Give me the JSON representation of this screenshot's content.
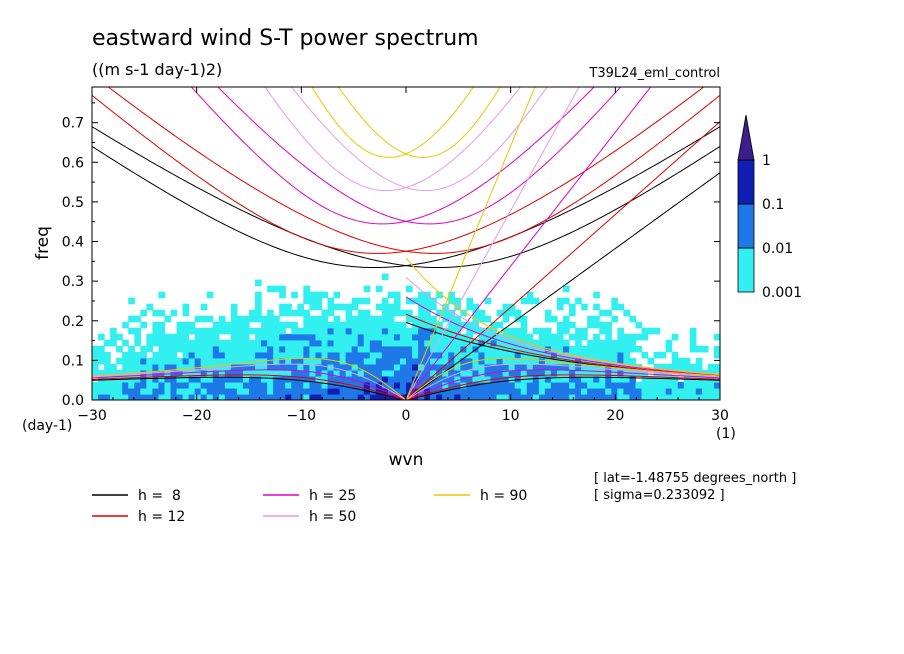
{
  "chart_data": {
    "type": "heatmap",
    "title": "eastward wind S-T power spectrum",
    "units": "((m s-1 day-1)2)",
    "run_label": "T39L24_eml_control",
    "xlabel": "wvn",
    "ylabel": "freq",
    "x_unit": "(1)",
    "y_unit": "(day-1)",
    "xlim": [
      -30,
      30
    ],
    "ylim": [
      0,
      0.79
    ],
    "x_ticks": [
      -30,
      -20,
      -10,
      0,
      10,
      20,
      30
    ],
    "x_tick_labels": [
      "-30",
      "-20",
      "-10",
      "0",
      "10",
      "20",
      "30"
    ],
    "y_ticks": [
      0.0,
      0.1,
      0.2,
      0.3,
      0.4,
      0.5,
      0.6,
      0.7
    ],
    "y_tick_labels": [
      "0.0",
      "0.1",
      "0.2",
      "0.3",
      "0.4",
      "0.5",
      "0.6",
      "0.7"
    ],
    "colorbar": {
      "levels": [
        0.001,
        0.01,
        0.1,
        1
      ],
      "level_labels": [
        "0.001",
        "0.01",
        "0.1",
        "1"
      ],
      "colors": [
        "#33f0f0",
        "#1f78e8",
        "#0f1fb4",
        "#3a1e8c"
      ]
    },
    "dispersion_curves": [
      {
        "name": "h =  8",
        "h": 8,
        "color": "#000000"
      },
      {
        "name": "h = 12",
        "h": 12,
        "color": "#e00000"
      },
      {
        "name": "h = 25",
        "h": 25,
        "color": "#e000c8"
      },
      {
        "name": "h = 50",
        "h": 50,
        "color": "#e89ae8"
      },
      {
        "name": "h = 90",
        "h": 90,
        "color": "#e8c800"
      }
    ],
    "annotations": [
      "[ lat=-1.48755 degrees_north ]",
      "[ sigma=0.233092 ]"
    ]
  }
}
